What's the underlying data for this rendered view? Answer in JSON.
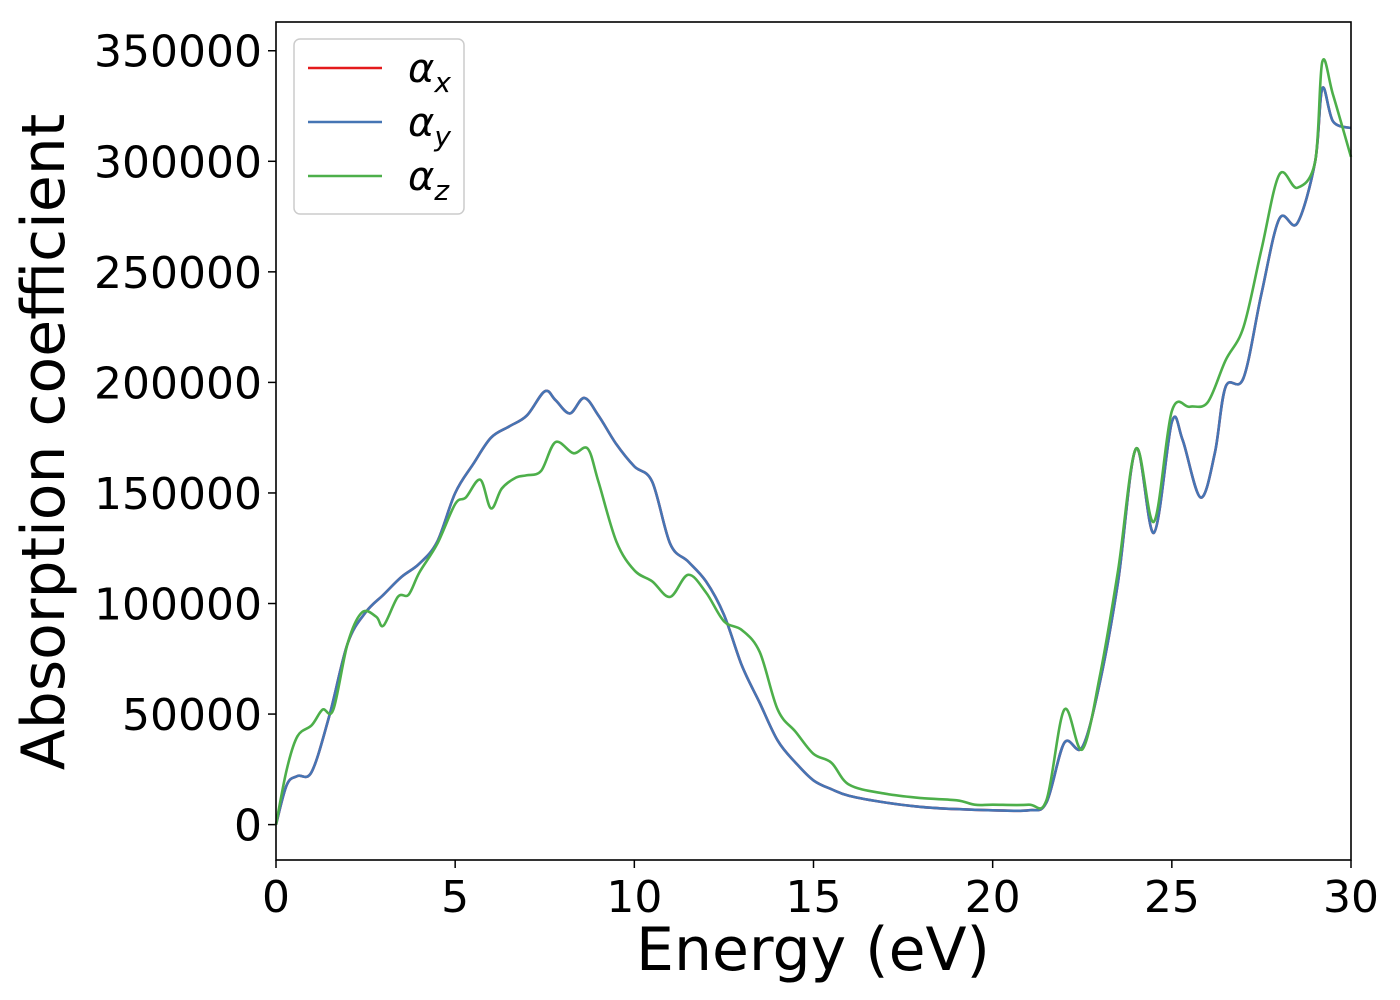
{
  "chart_data": {
    "type": "line",
    "xlabel": "Energy (eV)",
    "ylabel": "Absorption coefficient",
    "xlim": [
      0,
      30
    ],
    "ylim": [
      -16000,
      363000
    ],
    "x_ticks": [
      0,
      5,
      10,
      15,
      20,
      25,
      30
    ],
    "y_ticks": [
      0,
      50000,
      100000,
      150000,
      200000,
      250000,
      300000,
      350000
    ],
    "grid": false,
    "legend_position": "top-left",
    "series": [
      {
        "name": "α_x",
        "label_base": "α",
        "label_sub": "x",
        "color": "#e41a1c",
        "x": [
          0,
          0.3,
          0.6,
          1,
          1.5,
          2,
          2.5,
          3,
          3.5,
          4,
          4.5,
          5,
          5.5,
          6,
          6.5,
          7,
          7.5,
          7.8,
          8.2,
          8.6,
          9,
          9.5,
          10,
          10.5,
          11,
          11.5,
          12,
          12.5,
          13,
          13.5,
          14,
          14.5,
          15,
          15.5,
          16,
          17,
          18,
          19,
          20,
          21,
          21.5,
          22,
          22.5,
          23,
          23.5,
          24,
          24.5,
          25,
          25.3,
          25.8,
          26.2,
          26.5,
          27,
          27.5,
          28,
          28.5,
          29,
          29.2,
          29.5,
          30
        ],
        "values": [
          0,
          18000,
          22000,
          24000,
          50000,
          82000,
          96000,
          104000,
          112000,
          118000,
          128000,
          150000,
          163000,
          175000,
          180000,
          185000,
          196000,
          192000,
          186000,
          193000,
          185000,
          172000,
          162000,
          155000,
          127000,
          119000,
          110000,
          95000,
          72000,
          55000,
          38000,
          28000,
          20000,
          16000,
          13000,
          10000,
          8000,
          7000,
          6500,
          6500,
          10000,
          37000,
          35000,
          65000,
          110000,
          170000,
          132000,
          182000,
          174000,
          148000,
          168000,
          198000,
          202000,
          240000,
          274000,
          272000,
          300000,
          333000,
          318000,
          315000
        ]
      },
      {
        "name": "α_y",
        "label_base": "α",
        "label_sub": "y",
        "color": "#4575b4",
        "x": [
          0,
          0.3,
          0.6,
          1,
          1.5,
          2,
          2.5,
          3,
          3.5,
          4,
          4.5,
          5,
          5.5,
          6,
          6.5,
          7,
          7.5,
          7.8,
          8.2,
          8.6,
          9,
          9.5,
          10,
          10.5,
          11,
          11.5,
          12,
          12.5,
          13,
          13.5,
          14,
          14.5,
          15,
          15.5,
          16,
          17,
          18,
          19,
          20,
          21,
          21.5,
          22,
          22.5,
          23,
          23.5,
          24,
          24.5,
          25,
          25.3,
          25.8,
          26.2,
          26.5,
          27,
          27.5,
          28,
          28.5,
          29,
          29.2,
          29.5,
          30
        ],
        "values": [
          0,
          18000,
          22000,
          24000,
          50000,
          82000,
          96000,
          104000,
          112000,
          118000,
          128000,
          150000,
          163000,
          175000,
          180000,
          185000,
          196000,
          192000,
          186000,
          193000,
          185000,
          172000,
          162000,
          155000,
          127000,
          119000,
          110000,
          95000,
          72000,
          55000,
          38000,
          28000,
          20000,
          16000,
          13000,
          10000,
          8000,
          7000,
          6500,
          6500,
          10000,
          37000,
          35000,
          65000,
          110000,
          170000,
          132000,
          182000,
          174000,
          148000,
          168000,
          198000,
          202000,
          240000,
          274000,
          272000,
          300000,
          333000,
          318000,
          315000
        ]
      },
      {
        "name": "α_z",
        "label_base": "α",
        "label_sub": "z",
        "color": "#4daf4a",
        "x": [
          0,
          0.3,
          0.6,
          1,
          1.3,
          1.6,
          2,
          2.4,
          2.8,
          3,
          3.4,
          3.7,
          4,
          4.5,
          5,
          5.3,
          5.7,
          6,
          6.3,
          6.7,
          7,
          7.4,
          7.8,
          8.3,
          8.7,
          9,
          9.5,
          10,
          10.5,
          11,
          11.5,
          12,
          12.5,
          13,
          13.5,
          14,
          14.5,
          15,
          15.5,
          16,
          17,
          18,
          19,
          19.5,
          20,
          21,
          21.5,
          22,
          22.5,
          23,
          23.5,
          24,
          24.5,
          25,
          25.5,
          26,
          26.5,
          27,
          27.5,
          28,
          28.5,
          29,
          29.2,
          29.5,
          30
        ],
        "values": [
          0,
          25000,
          40000,
          45000,
          52000,
          52000,
          82000,
          96000,
          94000,
          90000,
          103000,
          104000,
          114000,
          127000,
          145000,
          148000,
          156000,
          143000,
          152000,
          157000,
          158000,
          160000,
          173000,
          168000,
          170000,
          155000,
          128000,
          115000,
          110000,
          103000,
          113000,
          105000,
          92000,
          88000,
          78000,
          52000,
          42000,
          32000,
          28000,
          18000,
          14000,
          12000,
          11000,
          9000,
          9000,
          9000,
          11000,
          52000,
          34000,
          68000,
          115000,
          170000,
          137000,
          187000,
          189000,
          191000,
          210000,
          225000,
          260000,
          294000,
          288000,
          300000,
          345000,
          330000,
          302000
        ]
      }
    ]
  }
}
